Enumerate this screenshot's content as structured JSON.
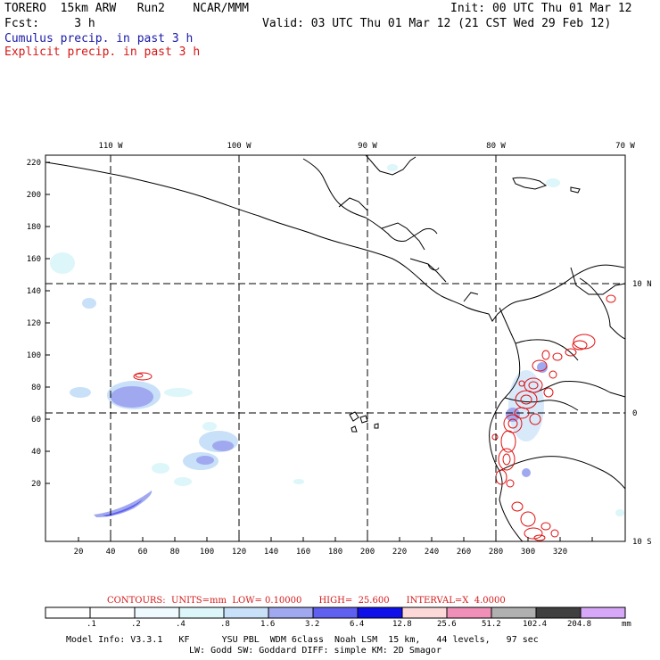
{
  "header": {
    "title_left": "TORERO  15km ARW   Run2    NCAR/MMM",
    "init": "Init: 00 UTC Thu 01 Mar 12",
    "fcst": "Fcst:     3 h",
    "valid": "Valid: 03 UTC Thu 01 Mar 12 (21 CST Wed 29 Feb 12)",
    "cumulus": "Cumulus precip. in past 3 h",
    "explicit": "Explicit precip. in past 3 h"
  },
  "axes": {
    "top_labels": [
      "110 W",
      "100 W",
      "90 W",
      "80 W",
      "70 W"
    ],
    "right_labels": [
      "10 N",
      "0",
      "10 S"
    ],
    "left_ticks": [
      "220",
      "200",
      "180",
      "160",
      "140",
      "120",
      "100",
      "80",
      "60",
      "40",
      "20"
    ],
    "bottom_ticks": [
      "20",
      "40",
      "60",
      "80",
      "100",
      "120",
      "140",
      "160",
      "180",
      "200",
      "220",
      "240",
      "260",
      "280",
      "300",
      "320"
    ]
  },
  "colors": {
    "cumulus_text": "#1a1aa8",
    "explicit_text": "#d61818",
    "contour_red": "#e01010"
  },
  "contours_line": "CONTOURS:  UNITS=mm  LOW= 0.10000      HIGH=  25.600      INTERVAL=X  4.0000",
  "colorbar": {
    "labels": [
      ".1",
      ".2",
      ".4",
      ".8",
      "1.6",
      "3.2",
      "6.4",
      "12.8",
      "25.6",
      "51.2",
      "102.4",
      "204.8"
    ],
    "unit": "mm",
    "colors": [
      "#ffffff",
      "#ffffff",
      "#eefaff",
      "#dcf6fa",
      "#c8e0f8",
      "#a0a8f0",
      "#6060f0",
      "#1010e8",
      "#fcd8d8",
      "#f090b8",
      "#b0b0b0",
      "#404040",
      "#d8a8f8"
    ]
  },
  "model_info": {
    "line1": "Model Info: V3.3.1   KF      YSU PBL  WDM 6class  Noah LSM  15 km,   44 levels,   97 sec",
    "line2": "LW: Godd SW: Goddard DIFF: simple KM: 2D Smagor"
  }
}
